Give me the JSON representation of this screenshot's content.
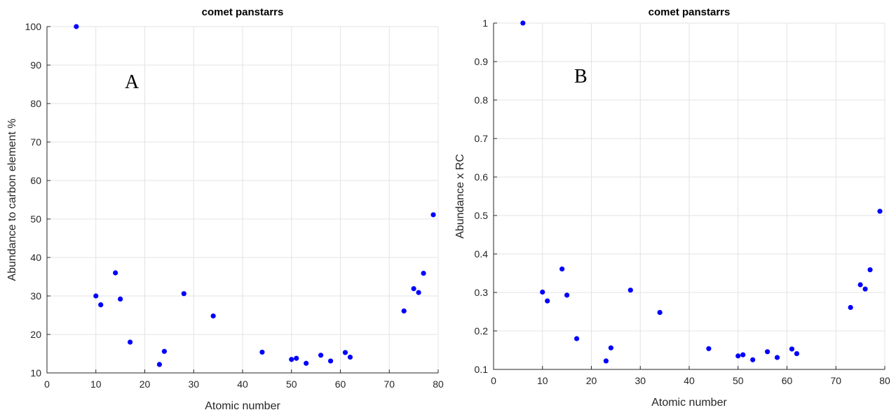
{
  "chart_data": [
    {
      "type": "scatter",
      "title": "comet panstarrs",
      "panel_label": "A",
      "xlabel": "Atomic number",
      "ylabel": "Abundance to carbon element %",
      "xlim": [
        0,
        80
      ],
      "ylim": [
        10,
        100
      ],
      "xticks": [
        "0",
        "10",
        "20",
        "30",
        "40",
        "50",
        "60",
        "70",
        "80"
      ],
      "yticks": [
        "10",
        "20",
        "30",
        "40",
        "50",
        "60",
        "70",
        "80",
        "90",
        "100"
      ],
      "grid": true,
      "marker_color": "#0000ff",
      "points": [
        {
          "x": 6,
          "y": 100
        },
        {
          "x": 10,
          "y": 30
        },
        {
          "x": 11,
          "y": 27.7
        },
        {
          "x": 14,
          "y": 36
        },
        {
          "x": 15,
          "y": 29.2
        },
        {
          "x": 17,
          "y": 18
        },
        {
          "x": 23,
          "y": 12.2
        },
        {
          "x": 24,
          "y": 15.6
        },
        {
          "x": 28,
          "y": 30.6
        },
        {
          "x": 34,
          "y": 24.8
        },
        {
          "x": 44,
          "y": 15.4
        },
        {
          "x": 50,
          "y": 13.5
        },
        {
          "x": 51,
          "y": 13.8
        },
        {
          "x": 53,
          "y": 12.5
        },
        {
          "x": 56,
          "y": 14.6
        },
        {
          "x": 58,
          "y": 13.1
        },
        {
          "x": 61,
          "y": 15.3
        },
        {
          "x": 62,
          "y": 14.1
        },
        {
          "x": 73,
          "y": 26.1
        },
        {
          "x": 75,
          "y": 31.9
        },
        {
          "x": 76,
          "y": 30.9
        },
        {
          "x": 77,
          "y": 35.9
        },
        {
          "x": 79,
          "y": 51.1
        }
      ]
    },
    {
      "type": "scatter",
      "title": "comet panstarrs",
      "panel_label": "B",
      "xlabel": "Atomic number",
      "ylabel": "Abundance x RC",
      "xlim": [
        0,
        80
      ],
      "ylim": [
        0.1,
        1
      ],
      "xticks": [
        "0",
        "10",
        "20",
        "30",
        "40",
        "50",
        "60",
        "70",
        "80"
      ],
      "yticks": [
        "0.1",
        "0.2",
        "0.3",
        "0.4",
        "0.5",
        "0.6",
        "0.7",
        "0.8",
        "0.9",
        "1"
      ],
      "grid": true,
      "marker_color": "#0000ff",
      "points": [
        {
          "x": 6,
          "y": 1.0
        },
        {
          "x": 10,
          "y": 0.301
        },
        {
          "x": 11,
          "y": 0.278
        },
        {
          "x": 14,
          "y": 0.361
        },
        {
          "x": 15,
          "y": 0.293
        },
        {
          "x": 17,
          "y": 0.18
        },
        {
          "x": 23,
          "y": 0.122
        },
        {
          "x": 24,
          "y": 0.156
        },
        {
          "x": 28,
          "y": 0.306
        },
        {
          "x": 34,
          "y": 0.248
        },
        {
          "x": 44,
          "y": 0.154
        },
        {
          "x": 50,
          "y": 0.135
        },
        {
          "x": 51,
          "y": 0.138
        },
        {
          "x": 53,
          "y": 0.125
        },
        {
          "x": 56,
          "y": 0.146
        },
        {
          "x": 58,
          "y": 0.131
        },
        {
          "x": 61,
          "y": 0.153
        },
        {
          "x": 62,
          "y": 0.141
        },
        {
          "x": 73,
          "y": 0.261
        },
        {
          "x": 75,
          "y": 0.32
        },
        {
          "x": 76,
          "y": 0.309
        },
        {
          "x": 77,
          "y": 0.359
        },
        {
          "x": 79,
          "y": 0.511
        }
      ]
    }
  ]
}
